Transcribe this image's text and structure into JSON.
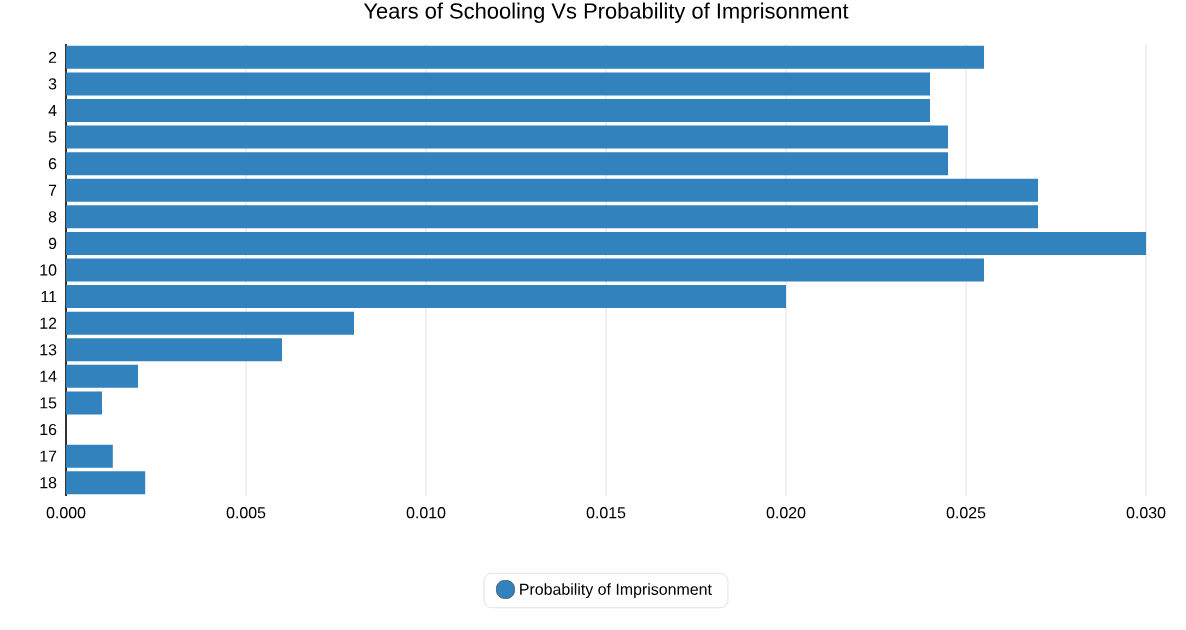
{
  "chart_data": {
    "type": "bar",
    "orientation": "horizontal",
    "title": "Years of Schooling Vs Probability of Imprisonment",
    "categories": [
      "2",
      "3",
      "4",
      "5",
      "6",
      "7",
      "8",
      "9",
      "10",
      "11",
      "12",
      "13",
      "14",
      "15",
      "16",
      "17",
      "18"
    ],
    "series": [
      {
        "name": "Probability of Imprisonment",
        "color": "#3182bd",
        "values": [
          0.0255,
          0.024,
          0.024,
          0.0245,
          0.0245,
          0.027,
          0.027,
          0.03,
          0.0255,
          0.02,
          0.008,
          0.006,
          0.002,
          0.001,
          0,
          0.0013,
          0.0022
        ]
      }
    ],
    "xlim": [
      0,
      0.03
    ],
    "xticks": [
      {
        "value": 0,
        "label": "0.000"
      },
      {
        "value": 0.005,
        "label": "0.005"
      },
      {
        "value": 0.01,
        "label": "0.010"
      },
      {
        "value": 0.015,
        "label": "0.015"
      },
      {
        "value": 0.02,
        "label": "0.020"
      },
      {
        "value": 0.025,
        "label": "0.025"
      },
      {
        "value": 0.03,
        "label": "0.030"
      }
    ],
    "grid": "x",
    "legend": "bottom"
  }
}
